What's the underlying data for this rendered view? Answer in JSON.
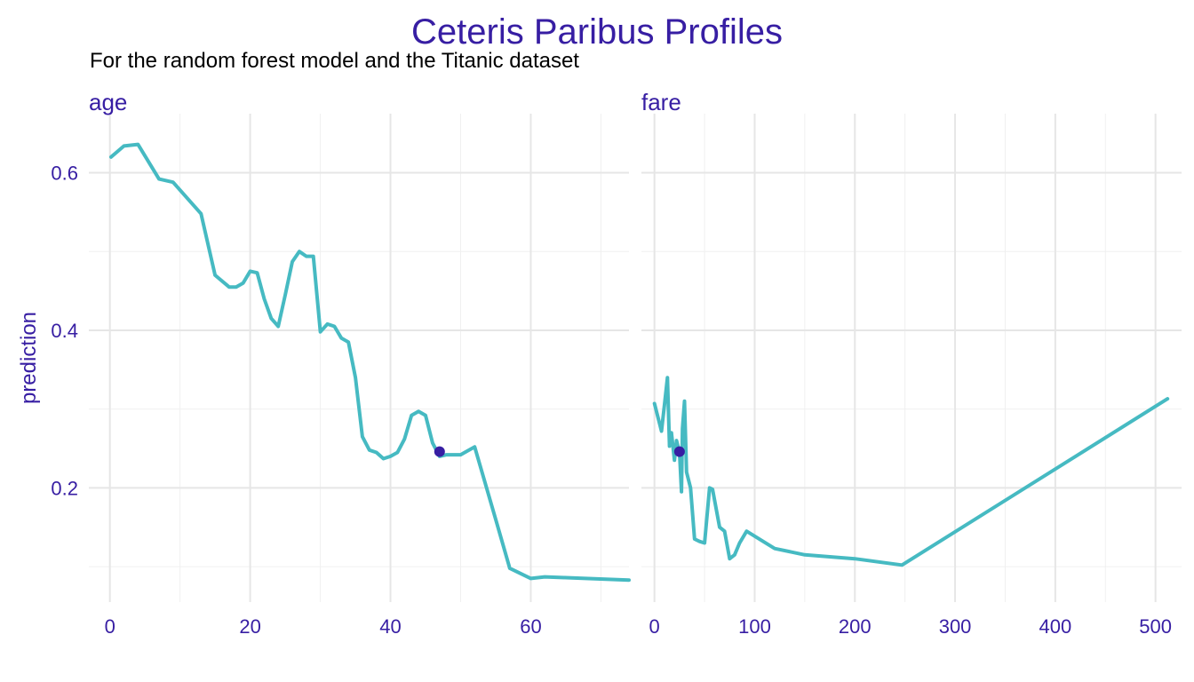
{
  "title": "Ceteris Paribus Profiles",
  "subtitle": "For the random forest model and the Titanic dataset",
  "colors": {
    "title": "#371ea3",
    "line": "#46bac2",
    "point": "#371ea3",
    "grid": "#e6e6e6",
    "grid_minor": "#f0f0f0"
  },
  "chart_data": {
    "type": "line",
    "ylabel": "prediction",
    "ylim": [
      0.055,
      0.675
    ],
    "y_ticks": [
      0.2,
      0.4,
      0.6
    ],
    "y_tick_labels": [
      "0.2",
      "0.4",
      "0.6"
    ],
    "grid": true,
    "panels": [
      {
        "name": "age",
        "xlim": [
          -3,
          74
        ],
        "x_ticks": [
          0,
          20,
          40,
          60
        ],
        "x_tick_labels": [
          "0",
          "20",
          "40",
          "60"
        ],
        "x_minor": [
          10,
          30,
          50,
          70
        ],
        "series": [
          {
            "x": [
              0.17,
              2,
              4,
              7,
              9,
              13,
              15,
              17,
              18,
              19,
              20,
              21,
              22,
              23,
              24,
              25,
              26,
              27,
              28,
              29,
              30,
              31,
              32,
              33,
              34,
              35,
              36,
              37,
              38,
              39,
              40,
              41,
              42,
              43,
              44,
              45,
              46,
              47,
              48,
              50,
              52,
              55,
              57,
              60,
              62,
              65,
              74
            ],
            "y": [
              0.62,
              0.634,
              0.636,
              0.592,
              0.588,
              0.548,
              0.47,
              0.455,
              0.455,
              0.46,
              0.475,
              0.473,
              0.44,
              0.415,
              0.405,
              0.445,
              0.487,
              0.5,
              0.494,
              0.494,
              0.398,
              0.408,
              0.405,
              0.39,
              0.385,
              0.34,
              0.265,
              0.248,
              0.245,
              0.237,
              0.24,
              0.245,
              0.262,
              0.292,
              0.297,
              0.292,
              0.257,
              0.24,
              0.242,
              0.242,
              0.252,
              0.16,
              0.098,
              0.085,
              0.087,
              0.086,
              0.083
            ]
          }
        ],
        "observation": {
          "x": 47,
          "y": 0.246
        }
      },
      {
        "name": "fare",
        "xlim": [
          -13,
          526
        ],
        "x_ticks": [
          0,
          100,
          200,
          300,
          400,
          500
        ],
        "x_tick_labels": [
          "0",
          "100",
          "200",
          "300",
          "400",
          "500"
        ],
        "x_minor": [
          50,
          150,
          250,
          350,
          450
        ],
        "series": [
          {
            "x": [
              0,
              7,
              10,
              13,
              15,
              17,
              20,
              22,
              25,
              27,
              28,
              30,
              32,
              36,
              40,
              45,
              50,
              55,
              58,
              65,
              70,
              75,
              80,
              85,
              92,
              120,
              150,
              200,
              247,
              512
            ],
            "y": [
              0.307,
              0.272,
              0.305,
              0.34,
              0.253,
              0.27,
              0.235,
              0.26,
              0.245,
              0.195,
              0.275,
              0.31,
              0.22,
              0.2,
              0.135,
              0.132,
              0.13,
              0.2,
              0.198,
              0.15,
              0.145,
              0.11,
              0.115,
              0.13,
              0.145,
              0.123,
              0.115,
              0.11,
              0.102,
              0.313
            ]
          }
        ],
        "observation": {
          "x": 25,
          "y": 0.246
        }
      }
    ]
  }
}
